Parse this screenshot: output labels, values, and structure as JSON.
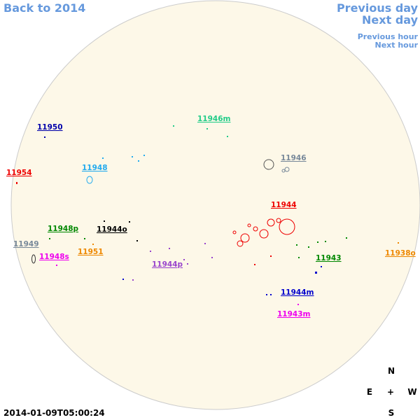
{
  "nav": {
    "back": "Back to 2014",
    "previous_day": "Previous day",
    "next_day": "Next day",
    "previous_hour": "Previous hour",
    "next_hour": "Next hour"
  },
  "regions": [
    {
      "label": "11946m",
      "color": "#22cc88"
    },
    {
      "label": "11950",
      "color": "#0000aa"
    },
    {
      "label": "11946",
      "color": "#778899"
    },
    {
      "label": "11948",
      "color": "#22aaee"
    },
    {
      "label": "11954",
      "color": "#ee0000"
    },
    {
      "label": "11944",
      "color": "#ee0000"
    },
    {
      "label": "11948p",
      "color": "#008800"
    },
    {
      "label": "11944o",
      "color": "#000000"
    },
    {
      "label": "11949",
      "color": "#778899"
    },
    {
      "label": "11951",
      "color": "#ee8800"
    },
    {
      "label": "11948s",
      "color": "#ee00ee"
    },
    {
      "label": "11938o",
      "color": "#ee8800"
    },
    {
      "label": "11943",
      "color": "#008800"
    },
    {
      "label": "11944p",
      "color": "#9944cc"
    },
    {
      "label": "11944m",
      "color": "#0000cc"
    },
    {
      "label": "11943m",
      "color": "#ee00ee"
    }
  ],
  "timestamp": "2014-01-09T05:00:24",
  "compass": {
    "north": "N",
    "east": "E",
    "center": "+",
    "west": "W",
    "south": "S"
  }
}
